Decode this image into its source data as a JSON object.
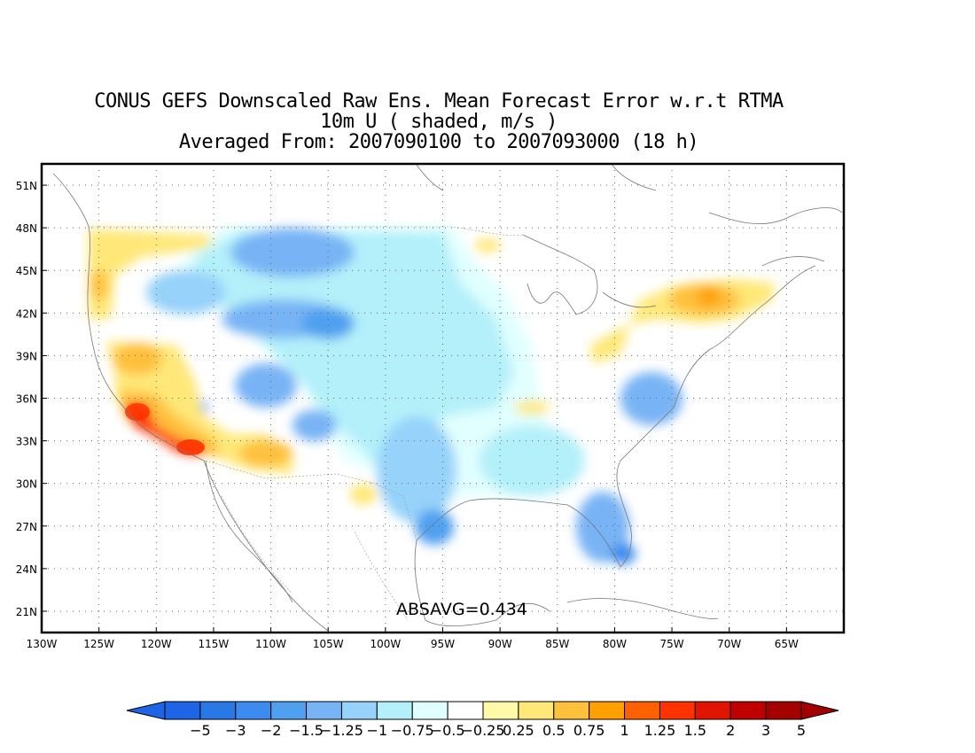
{
  "titles": [
    "CONUS GEFS Downscaled Raw Ens. Mean Forecast Error w.r.t RTMA",
    "10m U ( shaded, m/s )",
    "Averaged From: 2007090100 to 2007093000 (18 h)"
  ],
  "map": {
    "lon_range": [
      -130,
      -60
    ],
    "lat_range": [
      19.5,
      52.5
    ],
    "lon_ticks": [
      -130,
      -125,
      -120,
      -115,
      -110,
      -105,
      -100,
      -95,
      -90,
      -85,
      -80,
      -75,
      -70,
      -65
    ],
    "lon_tick_labels": [
      "130W",
      "125W",
      "120W",
      "115W",
      "110W",
      "105W",
      "100W",
      "95W",
      "90W",
      "85W",
      "80W",
      "75W",
      "70W",
      "65W"
    ],
    "lat_ticks": [
      21,
      24,
      27,
      30,
      33,
      36,
      39,
      42,
      45,
      48,
      51
    ],
    "lat_tick_labels": [
      "21N",
      "24N",
      "27N",
      "30N",
      "33N",
      "36N",
      "39N",
      "42N",
      "45N",
      "48N",
      "51N"
    ],
    "grid": "dotted",
    "annotation": "ABSAVG=0.434"
  },
  "colorbar": {
    "labels": [
      "−5",
      "−3",
      "−2",
      "−1.5",
      "−1.25",
      "−1",
      "−0.75",
      "−0.5",
      "−0.25",
      "0.25",
      "0.5",
      "0.75",
      "1",
      "1.25",
      "1.5",
      "2",
      "3",
      "5"
    ],
    "colors": [
      "#1e64e6",
      "#2878e6",
      "#3c8cf0",
      "#50a0f0",
      "#78b4f5",
      "#96d2fa",
      "#b4f0fa",
      "#e1ffff",
      "#ffffff",
      "#fffaaa",
      "#ffe878",
      "#ffc03c",
      "#ffa000",
      "#ff6000",
      "#ff3200",
      "#e11400",
      "#c00000",
      "#a50000"
    ]
  },
  "icons": {
    "colorbar_left_arrow": "triangle-left-icon",
    "colorbar_right_arrow": "triangle-right-icon"
  }
}
